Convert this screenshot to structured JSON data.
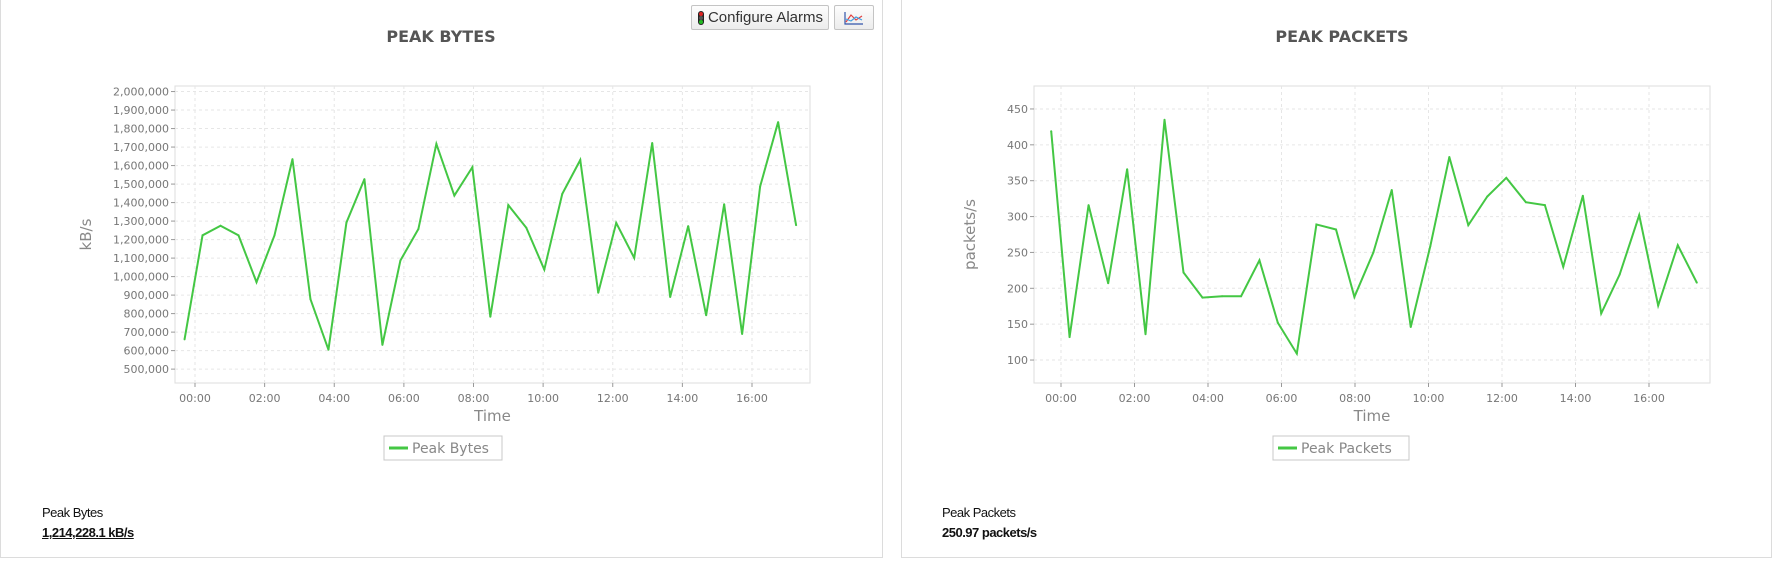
{
  "toolbar": {
    "configure_alarms_label": "Configure Alarms",
    "configure_alarms_icon": "traffic-light-icon",
    "chart_type_icon": "line-chart-icon"
  },
  "colors": {
    "series": "#44c744",
    "grid": "#e6e6e6",
    "axis_text": "#777777",
    "title": "#555555"
  },
  "footers": [
    {
      "label": "Peak Bytes",
      "value": "1,214,228.1 kB/s"
    },
    {
      "label": "Peak Packets",
      "value": "250.97 packets/s"
    }
  ],
  "chart_data": [
    {
      "type": "line",
      "title": "PEAK BYTES",
      "xlabel": "Time",
      "ylabel": "kB/s",
      "legend": "bottom",
      "grid": true,
      "ylim": [
        425000,
        2030000
      ],
      "yticks": [
        500000,
        600000,
        700000,
        800000,
        900000,
        1000000,
        1100000,
        1200000,
        1300000,
        1400000,
        1500000,
        1600000,
        1700000,
        1800000,
        1900000,
        2000000
      ],
      "ytick_labels": [
        "500,000",
        "600,000",
        "700,000",
        "800,000",
        "900,000",
        "1,000,000",
        "1,100,000",
        "1,200,000",
        "1,300,000",
        "1,400,000",
        "1,500,000",
        "1,600,000",
        "1,700,000",
        "1,800,000",
        "1,900,000",
        "2,000,000"
      ],
      "xticks": [
        "00:00",
        "02:00",
        "04:00",
        "06:00",
        "08:00",
        "10:00",
        "12:00",
        "14:00",
        "16:00"
      ],
      "x": [
        "23:42",
        "00:13",
        "00:44",
        "01:15",
        "01:46",
        "02:17",
        "02:48",
        "03:19",
        "03:50",
        "04:21",
        "04:52",
        "05:23",
        "05:54",
        "06:25",
        "06:56",
        "07:27",
        "07:58",
        "08:29",
        "09:00",
        "09:31",
        "10:02",
        "10:33",
        "11:04",
        "11:35",
        "12:06",
        "12:37",
        "13:08",
        "13:39",
        "14:10",
        "14:41",
        "15:12",
        "15:43",
        "16:14",
        "16:45",
        "17:16"
      ],
      "series": [
        {
          "name": "Peak Bytes",
          "values": [
            661000,
            1223000,
            1275000,
            1223000,
            970000,
            1223000,
            1635000,
            878000,
            605000,
            1292000,
            1527000,
            631000,
            1087000,
            1257000,
            1717000,
            1438000,
            1591000,
            783000,
            1386000,
            1264000,
            1038000,
            1447000,
            1630000,
            913000,
            1290000,
            1101000,
            1722000,
            890000,
            1273000,
            791000,
            1391000,
            690000,
            1487000,
            1835000,
            1278000
          ]
        }
      ]
    },
    {
      "type": "line",
      "title": "PEAK PACKETS",
      "xlabel": "Time",
      "ylabel": "packets/s",
      "legend": "bottom",
      "grid": true,
      "ylim": [
        68,
        482
      ],
      "yticks": [
        100,
        150,
        200,
        250,
        300,
        350,
        400,
        450
      ],
      "ytick_labels": [
        "100",
        "150",
        "200",
        "250",
        "300",
        "350",
        "400",
        "450"
      ],
      "xticks": [
        "00:00",
        "02:00",
        "04:00",
        "06:00",
        "08:00",
        "10:00",
        "12:00",
        "14:00",
        "16:00"
      ],
      "x": [
        "23:44",
        "00:14",
        "00:45",
        "01:17",
        "01:48",
        "02:18",
        "02:49",
        "03:20",
        "03:51",
        "04:23",
        "04:54",
        "05:24",
        "05:54",
        "06:25",
        "06:57",
        "07:29",
        "07:59",
        "08:30",
        "09:00",
        "09:31",
        "10:03",
        "10:34",
        "11:05",
        "11:36",
        "12:07",
        "12:39",
        "13:10",
        "13:40",
        "14:12",
        "14:42",
        "15:12",
        "15:44",
        "16:15",
        "16:47",
        "17:18"
      ],
      "series": [
        {
          "name": "Peak Packets",
          "values": [
            419,
            132,
            316,
            207,
            366,
            136,
            435,
            222,
            187,
            189,
            189,
            239,
            152,
            109,
            289,
            282,
            188,
            250,
            337,
            146,
            259,
            383,
            288,
            328,
            354,
            320,
            316,
            230,
            329,
            165,
            219,
            302,
            176,
            260,
            208
          ]
        }
      ]
    }
  ]
}
